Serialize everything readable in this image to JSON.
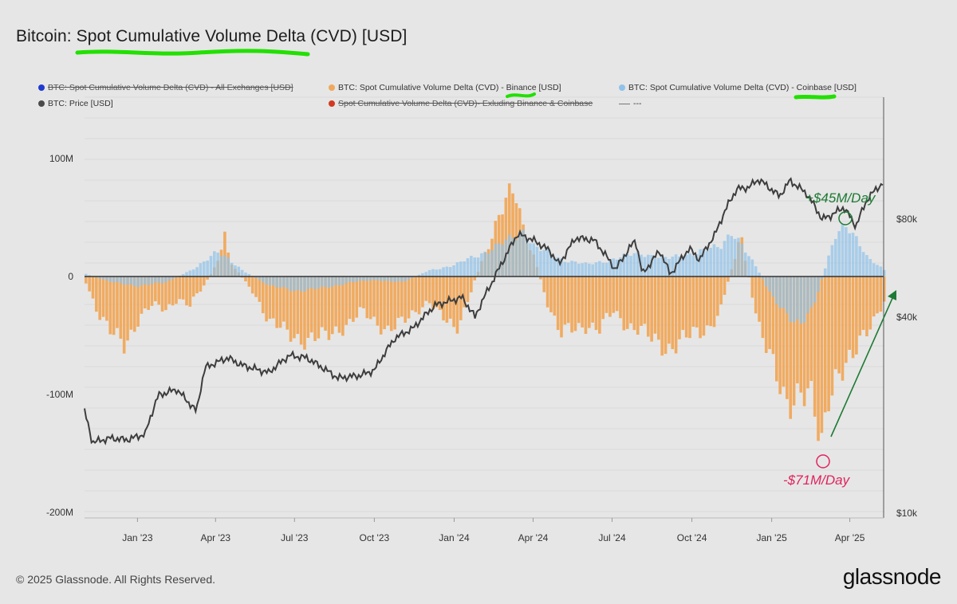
{
  "title": "Bitcoin: Spot Cumulative Volume Delta (CVD) [USD]",
  "legend": [
    {
      "label": "BTC: Spot Cumulative Volume Delta (CVD) - All Exchanges [USD]",
      "color": "#1f3ad1",
      "struck": true
    },
    {
      "label": "BTC: Spot Cumulative Volume Delta (CVD) - Binance [USD]",
      "color": "#f0a85a",
      "struck": false
    },
    {
      "label": "BTC: Spot Cumulative Volume Delta (CVD) - Coinbase [USD]",
      "color": "#8fc2ea",
      "struck": false
    },
    {
      "label": "BTC: Price [USD]",
      "color": "#4a4a4a",
      "struck": false
    },
    {
      "label": "Spot Cumulative Volume Delta (CVD)- Exluding Binance & Coinbase",
      "color": "#d23a1f",
      "struck": true
    },
    {
      "label": "---",
      "color": "#777777",
      "struck": false
    }
  ],
  "footer": "© 2025 Glassnode. All Rights Reserved.",
  "brand": "glassnode",
  "colors": {
    "binance": "#f0a85a",
    "coinbase": "#8fc2ea",
    "price": "#3d3d3d",
    "highlight": "#22e000",
    "pos_annotation": "#1d7a34",
    "neg_annotation": "#e0245e"
  },
  "chart_data": {
    "type": "bar",
    "x_ticks": [
      "Jan '23",
      "Apr '23",
      "Jul '23",
      "Oct '23",
      "Jan '24",
      "Apr '24",
      "Jul '24",
      "Oct '24",
      "Jan '25",
      "Apr '25"
    ],
    "y_left_ticks": [
      "100M",
      "0",
      "-100M",
      "-200M"
    ],
    "y_left_values": [
      100,
      0,
      -100,
      -200
    ],
    "y_right_ticks": [
      "$80k",
      "$40k",
      "$10k"
    ],
    "y_right_values": [
      80000,
      40000,
      10000
    ],
    "ylim_left": [
      -200,
      100
    ],
    "y_unit": "USD millions",
    "x_range": [
      "2022-11-01",
      "2025-05-10"
    ],
    "annotations": [
      {
        "text": "+$45M/Day",
        "date": "2025-03-28",
        "value": 45
      },
      {
        "text": "-$71M/Day",
        "date": "2025-02-26",
        "value": -71
      }
    ],
    "series": [
      {
        "name": "BTC: Spot Cumulative Volume Delta (CVD) - Binance [USD]",
        "axis": "left",
        "points": [
          [
            "2022-11-01",
            -5
          ],
          [
            "2022-11-15",
            -30
          ],
          [
            "2022-12-01",
            -50
          ],
          [
            "2022-12-15",
            -58
          ],
          [
            "2023-01-01",
            -35
          ],
          [
            "2023-01-15",
            -25
          ],
          [
            "2023-02-01",
            -28
          ],
          [
            "2023-02-15",
            -18
          ],
          [
            "2023-03-01",
            -25
          ],
          [
            "2023-03-15",
            -10
          ],
          [
            "2023-04-01",
            10
          ],
          [
            "2023-04-10",
            35
          ],
          [
            "2023-04-15",
            15
          ],
          [
            "2023-05-01",
            -2
          ],
          [
            "2023-05-15",
            -15
          ],
          [
            "2023-06-01",
            -40
          ],
          [
            "2023-06-15",
            -45
          ],
          [
            "2023-07-01",
            -50
          ],
          [
            "2023-07-15",
            -55
          ],
          [
            "2023-08-01",
            -52
          ],
          [
            "2023-08-15",
            -45
          ],
          [
            "2023-09-01",
            -40
          ],
          [
            "2023-09-15",
            -30
          ],
          [
            "2023-10-01",
            -38
          ],
          [
            "2023-10-15",
            -45
          ],
          [
            "2023-11-01",
            -40
          ],
          [
            "2023-11-15",
            -30
          ],
          [
            "2023-12-01",
            -20
          ],
          [
            "2023-12-15",
            -35
          ],
          [
            "2024-01-01",
            -45
          ],
          [
            "2024-01-15",
            -20
          ],
          [
            "2024-02-01",
            15
          ],
          [
            "2024-02-15",
            40
          ],
          [
            "2024-03-01",
            65
          ],
          [
            "2024-03-10",
            75
          ],
          [
            "2024-03-20",
            40
          ],
          [
            "2024-04-01",
            15
          ],
          [
            "2024-04-15",
            -20
          ],
          [
            "2024-05-01",
            -50
          ],
          [
            "2024-05-15",
            -45
          ],
          [
            "2024-06-01",
            -40
          ],
          [
            "2024-06-15",
            -45
          ],
          [
            "2024-07-01",
            -30
          ],
          [
            "2024-07-15",
            -40
          ],
          [
            "2024-08-01",
            -45
          ],
          [
            "2024-08-15",
            -55
          ],
          [
            "2024-09-01",
            -60
          ],
          [
            "2024-09-15",
            -55
          ],
          [
            "2024-10-01",
            -50
          ],
          [
            "2024-10-15",
            -45
          ],
          [
            "2024-11-01",
            -30
          ],
          [
            "2024-11-15",
            10
          ],
          [
            "2024-11-25",
            35
          ],
          [
            "2024-12-01",
            10
          ],
          [
            "2024-12-15",
            -40
          ],
          [
            "2025-01-01",
            -80
          ],
          [
            "2025-01-15",
            -105
          ],
          [
            "2025-02-01",
            -95
          ],
          [
            "2025-02-15",
            -110
          ],
          [
            "2025-02-26",
            -148
          ],
          [
            "2025-03-05",
            -100
          ],
          [
            "2025-03-15",
            -80
          ],
          [
            "2025-04-01",
            -75
          ],
          [
            "2025-04-15",
            -50
          ],
          [
            "2025-05-01",
            -30
          ],
          [
            "2025-05-10",
            -20
          ]
        ]
      },
      {
        "name": "BTC: Spot Cumulative Volume Delta (CVD) - Coinbase [USD]",
        "axis": "left",
        "points": [
          [
            "2022-11-01",
            2
          ],
          [
            "2022-12-01",
            -5
          ],
          [
            "2023-01-01",
            -8
          ],
          [
            "2023-02-01",
            -5
          ],
          [
            "2023-03-01",
            5
          ],
          [
            "2023-04-01",
            20
          ],
          [
            "2023-04-15",
            15
          ],
          [
            "2023-05-01",
            5
          ],
          [
            "2023-06-01",
            -8
          ],
          [
            "2023-07-01",
            -12
          ],
          [
            "2023-08-01",
            -10
          ],
          [
            "2023-09-01",
            -5
          ],
          [
            "2023-10-01",
            -3
          ],
          [
            "2023-11-01",
            -5
          ],
          [
            "2023-12-01",
            5
          ],
          [
            "2024-01-01",
            10
          ],
          [
            "2024-02-01",
            20
          ],
          [
            "2024-03-01",
            30
          ],
          [
            "2024-03-20",
            40
          ],
          [
            "2024-04-01",
            25
          ],
          [
            "2024-05-01",
            15
          ],
          [
            "2024-06-01",
            10
          ],
          [
            "2024-07-01",
            15
          ],
          [
            "2024-08-01",
            20
          ],
          [
            "2024-09-01",
            15
          ],
          [
            "2024-10-01",
            20
          ],
          [
            "2024-11-01",
            25
          ],
          [
            "2024-11-15",
            40
          ],
          [
            "2024-12-01",
            20
          ],
          [
            "2024-12-15",
            5
          ],
          [
            "2025-01-01",
            -20
          ],
          [
            "2025-01-15",
            -30
          ],
          [
            "2025-02-01",
            -40
          ],
          [
            "2025-02-15",
            -30
          ],
          [
            "2025-03-01",
            5
          ],
          [
            "2025-03-15",
            35
          ],
          [
            "2025-03-28",
            45
          ],
          [
            "2025-04-10",
            30
          ],
          [
            "2025-04-20",
            15
          ],
          [
            "2025-05-10",
            5
          ]
        ]
      },
      {
        "name": "BTC: Price [USD]",
        "axis": "right",
        "points": [
          [
            "2022-11-01",
            20500
          ],
          [
            "2022-11-10",
            16500
          ],
          [
            "2022-12-01",
            17000
          ],
          [
            "2022-12-20",
            16800
          ],
          [
            "2023-01-10",
            17500
          ],
          [
            "2023-01-25",
            23000
          ],
          [
            "2023-02-15",
            24000
          ],
          [
            "2023-03-10",
            20500
          ],
          [
            "2023-03-20",
            28000
          ],
          [
            "2023-04-15",
            30000
          ],
          [
            "2023-05-01",
            28500
          ],
          [
            "2023-06-01",
            27000
          ],
          [
            "2023-06-25",
            30500
          ],
          [
            "2023-07-15",
            30000
          ],
          [
            "2023-08-20",
            26000
          ],
          [
            "2023-09-15",
            26500
          ],
          [
            "2023-10-01",
            27500
          ],
          [
            "2023-10-25",
            34500
          ],
          [
            "2023-11-15",
            37000
          ],
          [
            "2023-12-10",
            43500
          ],
          [
            "2024-01-10",
            46000
          ],
          [
            "2024-01-25",
            40000
          ],
          [
            "2024-02-15",
            52000
          ],
          [
            "2024-03-01",
            62000
          ],
          [
            "2024-03-14",
            72000
          ],
          [
            "2024-04-01",
            69000
          ],
          [
            "2024-04-20",
            64000
          ],
          [
            "2024-05-01",
            58000
          ],
          [
            "2024-05-20",
            70000
          ],
          [
            "2024-06-10",
            69000
          ],
          [
            "2024-07-05",
            56000
          ],
          [
            "2024-07-28",
            69000
          ],
          [
            "2024-08-05",
            54000
          ],
          [
            "2024-08-25",
            64000
          ],
          [
            "2024-09-06",
            54000
          ],
          [
            "2024-09-28",
            65000
          ],
          [
            "2024-10-10",
            60000
          ],
          [
            "2024-10-28",
            72000
          ],
          [
            "2024-11-12",
            89000
          ],
          [
            "2024-11-22",
            99000
          ],
          [
            "2024-12-05",
            100000
          ],
          [
            "2024-12-17",
            106000
          ],
          [
            "2025-01-10",
            94000
          ],
          [
            "2025-01-22",
            105000
          ],
          [
            "2025-02-10",
            96000
          ],
          [
            "2025-02-28",
            80000
          ],
          [
            "2025-03-10",
            82000
          ],
          [
            "2025-03-25",
            87000
          ],
          [
            "2025-04-08",
            76000
          ],
          [
            "2025-04-22",
            93000
          ],
          [
            "2025-05-10",
            104000
          ]
        ]
      }
    ]
  }
}
